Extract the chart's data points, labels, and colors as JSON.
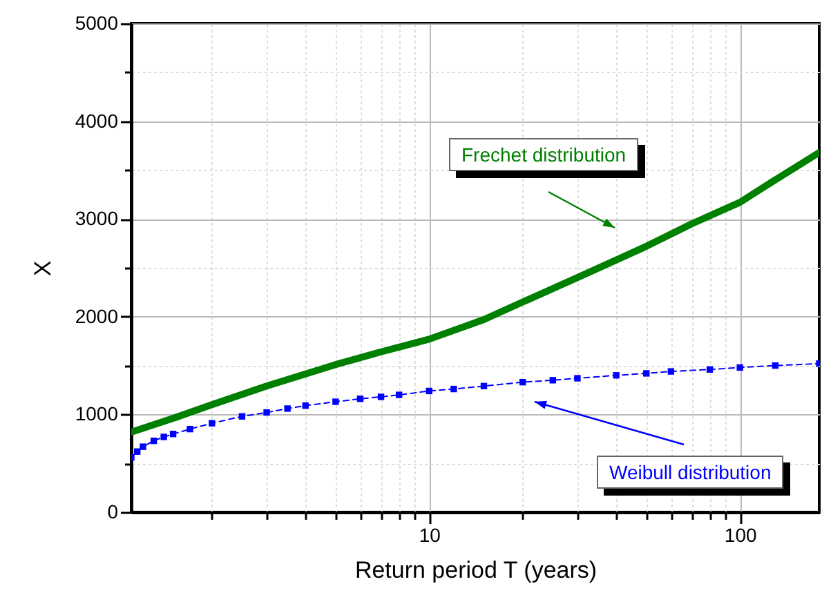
{
  "chart_data": {
    "type": "line",
    "xlabel": "Return period T (years)",
    "ylabel": "X",
    "log": "x",
    "grid": true,
    "xlim": [
      1.1,
      180
    ],
    "xticks": [
      {
        "value": 2,
        "label": null
      },
      {
        "value": 3,
        "label": null
      },
      {
        "value": 4,
        "label": null
      },
      {
        "value": 5,
        "label": null
      },
      {
        "value": 6,
        "label": null
      },
      {
        "value": 7,
        "label": null
      },
      {
        "value": 8,
        "label": null
      },
      {
        "value": 9,
        "label": null
      },
      10,
      {
        "value": 20,
        "label": null
      },
      {
        "value": 30,
        "label": null
      },
      {
        "value": 40,
        "label": null
      },
      {
        "value": 50,
        "label": null
      },
      {
        "value": 60,
        "label": null
      },
      {
        "value": 70,
        "label": null
      },
      {
        "value": 80,
        "label": null
      },
      {
        "value": 90,
        "label": null
      },
      100
    ],
    "ylim": [
      0,
      5000
    ],
    "yticks": [
      0,
      {
        "value": 500,
        "label": null
      },
      1000,
      {
        "value": 1500,
        "label": null
      },
      2000,
      {
        "value": 2500,
        "label": null
      },
      3000,
      {
        "value": 3500,
        "label": null
      },
      4000,
      {
        "value": 4500,
        "label": null
      },
      5000
    ],
    "series": [
      {
        "name": "Frechet distribution",
        "color": "#008000",
        "marker": "none",
        "line_style": "solid",
        "x": [
          1.1,
          1.5,
          2,
          3,
          5,
          7,
          10,
          15,
          20,
          30,
          50,
          70,
          100,
          130,
          180
        ],
        "values": [
          820,
          960,
          1100,
          1290,
          1510,
          1640,
          1770,
          1970,
          2150,
          2400,
          2720,
          2950,
          3170,
          3400,
          3680
        ]
      },
      {
        "name": "Weibull distribution",
        "color": "#0000ff",
        "marker": "square",
        "line_style": "dashed",
        "x": [
          1.1,
          1.15,
          1.2,
          1.3,
          1.4,
          1.5,
          1.7,
          2,
          2.5,
          3,
          3.5,
          4,
          5,
          6,
          7,
          8,
          10,
          12,
          15,
          20,
          25,
          30,
          40,
          50,
          60,
          80,
          100,
          130,
          180
        ],
        "values": [
          560,
          620,
          670,
          730,
          770,
          800,
          850,
          910,
          980,
          1020,
          1060,
          1090,
          1130,
          1160,
          1180,
          1200,
          1240,
          1260,
          1290,
          1330,
          1350,
          1370,
          1400,
          1420,
          1440,
          1460,
          1480,
          1500,
          1520
        ]
      }
    ]
  }
}
